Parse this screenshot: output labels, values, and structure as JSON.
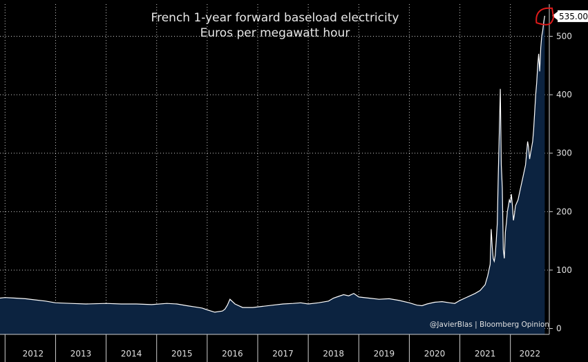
{
  "chart_data": {
    "type": "area",
    "title": "French 1-year forward baseload electricity",
    "subtitle": "Euros per megawatt hour",
    "ylabel": "",
    "xlabel": "",
    "ylim": [
      -10,
      555
    ],
    "xlim": [
      2011.9,
      2022.77
    ],
    "y_ticks": [
      0,
      100,
      200,
      300,
      400,
      500
    ],
    "x_tick_labels": [
      "2012",
      "2013",
      "2014",
      "2015",
      "2016",
      "2017",
      "2018",
      "2019",
      "2020",
      "2021",
      "2022"
    ],
    "grid": true,
    "last_value_label": "535.00",
    "credit": "@JavierBlas | Bloomberg Opinion",
    "colors": {
      "background": "#000000",
      "area_fill": "#0c2340",
      "line": "#ffffff",
      "grid": "#d0d0d0",
      "highlight": "#e01b1b",
      "label_box": "#ffffff"
    },
    "series": [
      {
        "x": [
          2011.9,
          2012.0,
          2012.2,
          2012.4,
          2012.6,
          2012.8,
          2013.0,
          2013.3,
          2013.6,
          2014.0,
          2014.3,
          2014.6,
          2014.9,
          2015.2,
          2015.4,
          2015.6,
          2015.75,
          2015.9,
          2016.0,
          2016.15,
          2016.3,
          2016.35,
          2016.4,
          2016.45,
          2016.55,
          2016.7,
          2016.9,
          2017.1,
          2017.3,
          2017.5,
          2017.7,
          2017.85,
          2018.0,
          2018.2,
          2018.4,
          2018.5,
          2018.6,
          2018.7,
          2018.8,
          2018.9,
          2019.0,
          2019.2,
          2019.4,
          2019.6,
          2019.8,
          2020.0,
          2020.15,
          2020.25,
          2020.35,
          2020.5,
          2020.65,
          2020.8,
          2020.9,
          2021.0,
          2021.1,
          2021.2,
          2021.3,
          2021.4,
          2021.5,
          2021.55,
          2021.6,
          2021.62,
          2021.64,
          2021.66,
          2021.68,
          2021.7,
          2021.72,
          2021.74,
          2021.76,
          2021.8,
          2021.82,
          2021.84,
          2021.86,
          2021.88,
          2021.9,
          2021.92,
          2021.94,
          2021.96,
          2021.98,
          2022.0,
          2022.02,
          2022.04,
          2022.06,
          2022.08,
          2022.1,
          2022.15,
          2022.2,
          2022.25,
          2022.3,
          2022.32,
          2022.34,
          2022.36,
          2022.38,
          2022.4,
          2022.42,
          2022.44,
          2022.46,
          2022.48,
          2022.5,
          2022.52,
          2022.54,
          2022.56,
          2022.58,
          2022.6,
          2022.62,
          2022.64,
          2022.66,
          2022.68
        ],
        "values": [
          52,
          53,
          52,
          51,
          49,
          47,
          44,
          43,
          42,
          43,
          42,
          42,
          41,
          43,
          42,
          39,
          37,
          35,
          32,
          28,
          30,
          33,
          40,
          50,
          42,
          36,
          36,
          38,
          40,
          42,
          43,
          44,
          42,
          44,
          47,
          52,
          55,
          58,
          56,
          60,
          54,
          52,
          50,
          51,
          48,
          44,
          40,
          39,
          42,
          45,
          46,
          44,
          43,
          48,
          52,
          56,
          60,
          65,
          75,
          90,
          110,
          170,
          140,
          120,
          115,
          125,
          150,
          180,
          260,
          410,
          280,
          240,
          135,
          120,
          165,
          180,
          200,
          210,
          220,
          215,
          230,
          210,
          185,
          195,
          210,
          220,
          240,
          260,
          280,
          300,
          320,
          310,
          290,
          300,
          310,
          320,
          340,
          370,
          400,
          420,
          450,
          470,
          440,
          480,
          500,
          510,
          525,
          535
        ]
      }
    ]
  }
}
